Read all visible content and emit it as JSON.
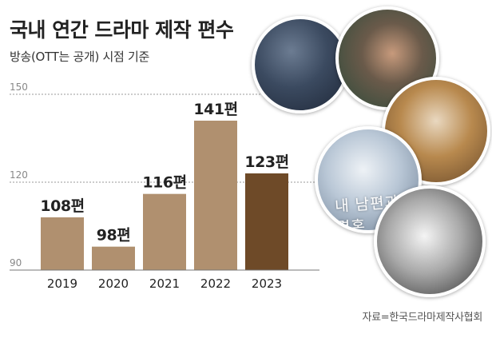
{
  "title": "국내 연간 드라마 제작 편수",
  "subtitle": "방송(OTT는 공개) 시점 기준",
  "source": "자료=한국드라마제작사협회",
  "poster_text": "내 남편과 결혼",
  "colors": {
    "bar": "#b0906f",
    "bar_highlight": "#6e4a28",
    "grid": "#9a9a9a",
    "text": "#222222"
  },
  "chart_data": {
    "type": "bar",
    "categories": [
      "2019",
      "2020",
      "2021",
      "2022",
      "2023"
    ],
    "values": [
      108,
      98,
      116,
      141,
      123
    ],
    "value_labels": [
      "108편",
      "98편",
      "116편",
      "141편",
      "123편"
    ],
    "ylim": [
      90,
      150
    ],
    "yticks": [
      90,
      120,
      150
    ],
    "highlight_index": 4,
    "grid": true
  }
}
